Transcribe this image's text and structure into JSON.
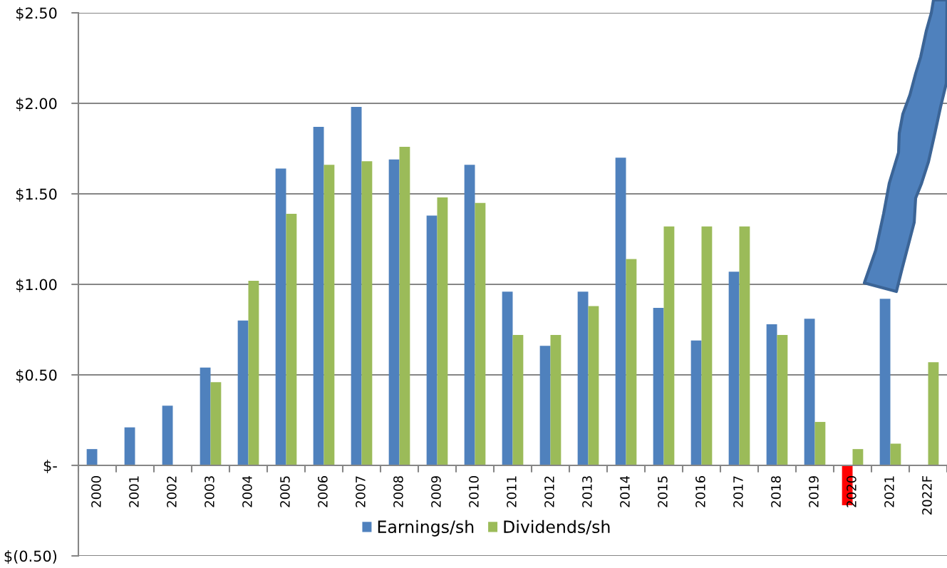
{
  "chart_data": {
    "type": "bar",
    "categories": [
      "2000",
      "2001",
      "2002",
      "2003",
      "2004",
      "2005",
      "2006",
      "2007",
      "2008",
      "2009",
      "2010",
      "2011",
      "2012",
      "2013",
      "2014",
      "2015",
      "2016",
      "2017",
      "2018",
      "2019",
      "2020",
      "2021",
      "2022F"
    ],
    "series": [
      {
        "name": "Earnings/sh",
        "color": "#4f81bd",
        "colors": [
          "#4f81bd",
          "#4f81bd",
          "#4f81bd",
          "#4f81bd",
          "#4f81bd",
          "#4f81bd",
          "#4f81bd",
          "#4f81bd",
          "#4f81bd",
          "#4f81bd",
          "#4f81bd",
          "#4f81bd",
          "#4f81bd",
          "#4f81bd",
          "#4f81bd",
          "#4f81bd",
          "#4f81bd",
          "#4f81bd",
          "#4f81bd",
          "#4f81bd",
          "#ff0000",
          "#4f81bd",
          "#4f81bd"
        ],
        "values": [
          0.09,
          0.21,
          0.33,
          0.54,
          0.8,
          1.64,
          1.87,
          1.98,
          1.69,
          1.38,
          1.66,
          0.96,
          0.66,
          0.96,
          1.7,
          0.87,
          0.69,
          1.07,
          0.78,
          0.81,
          -0.22,
          0.92,
          null
        ]
      },
      {
        "name": "Dividends/sh",
        "color": "#9bbb59",
        "values": [
          null,
          null,
          null,
          0.46,
          1.02,
          1.39,
          1.66,
          1.68,
          1.76,
          1.48,
          1.45,
          0.72,
          0.72,
          0.88,
          1.14,
          1.32,
          1.32,
          1.32,
          0.72,
          0.24,
          0.09,
          0.12,
          0.57
        ]
      }
    ],
    "ylim": [
      -0.5,
      2.5
    ],
    "yticks": [
      {
        "value": -0.5,
        "label": "$(0.50)"
      },
      {
        "value": 0,
        "label": "$-"
      },
      {
        "value": 0.5,
        "label": "$0.50"
      },
      {
        "value": 1.0,
        "label": "$1.00"
      },
      {
        "value": 1.5,
        "label": "$1.50"
      },
      {
        "value": 2.0,
        "label": "$2.00"
      },
      {
        "value": 2.5,
        "label": "$2.50"
      }
    ],
    "grid": "y",
    "legend": "bottom"
  }
}
